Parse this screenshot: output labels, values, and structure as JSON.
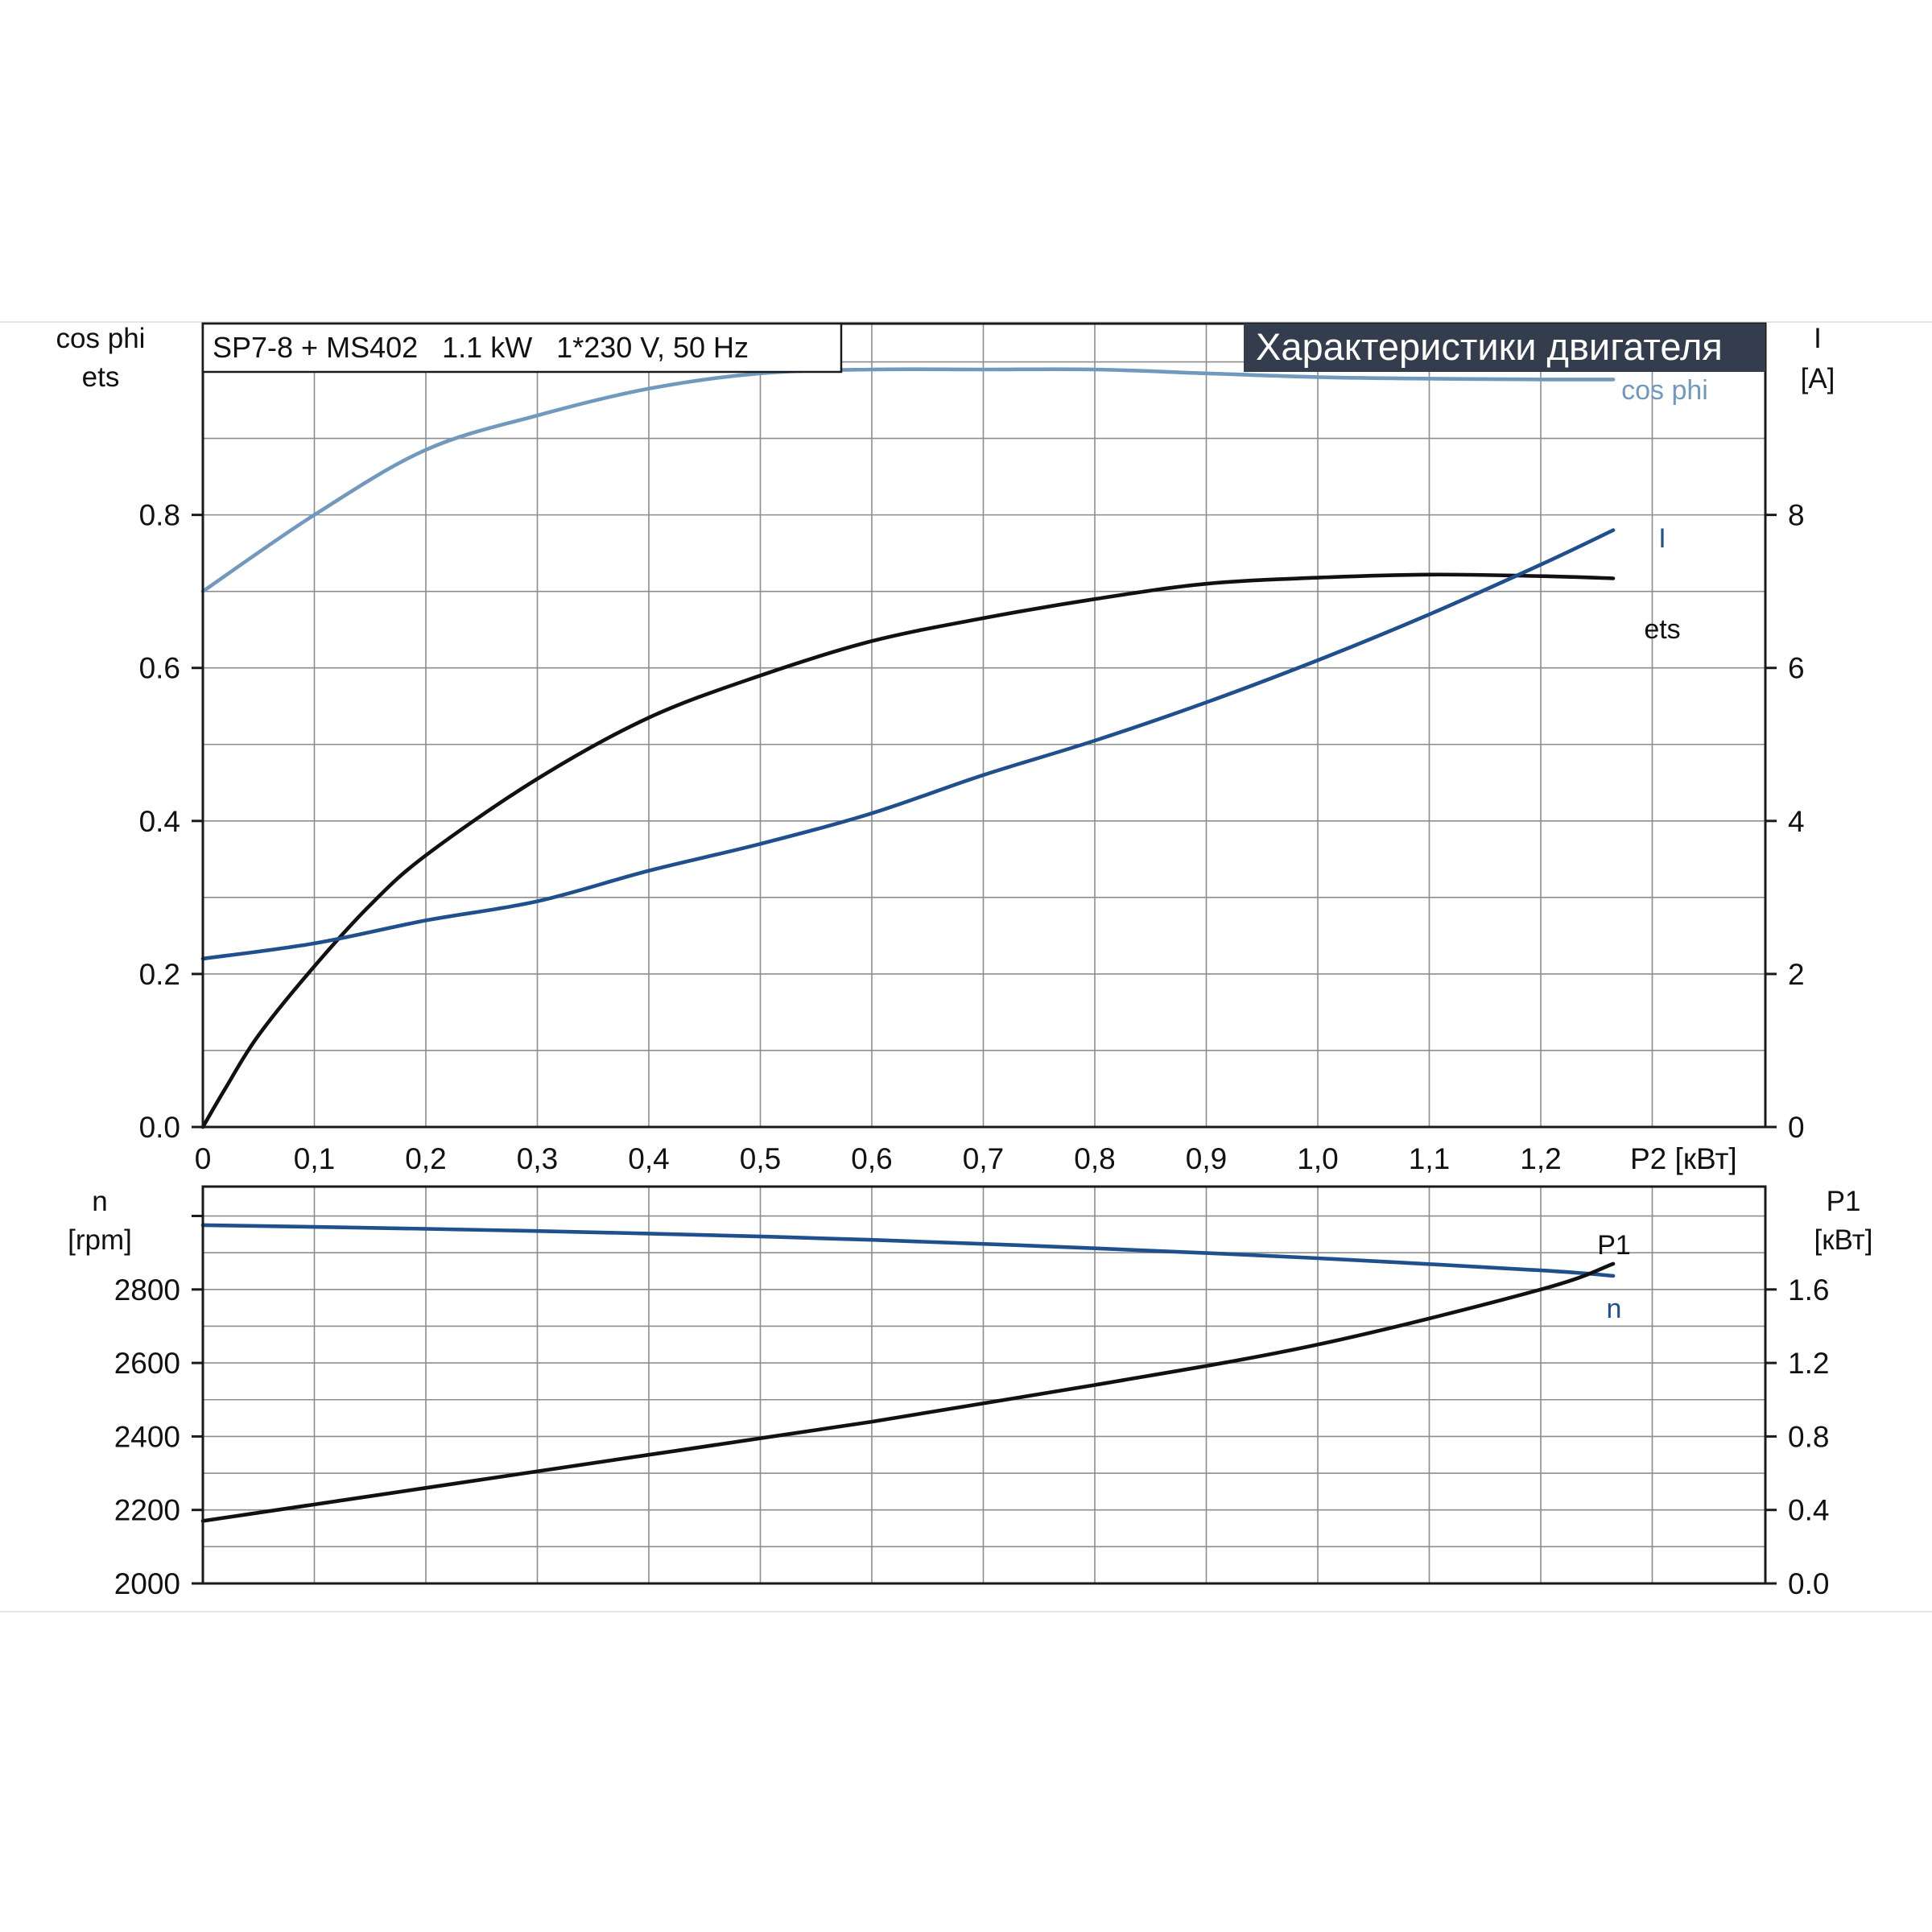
{
  "info_label": "SP7-8 + MS402   1.1 kW   1*230 V, 50 Hz",
  "title": "Характеристики двигателя",
  "colors": {
    "cos_phi": "#7199be",
    "current": "#1f4f8d",
    "ets": "#111111",
    "n": "#1f4f8d",
    "P1": "#111111",
    "title_bg": "#333d4d"
  },
  "chart_data": [
    {
      "type": "line",
      "x_label": "P2 [кВт]",
      "x_ticks": [
        "0",
        "0,1",
        "0,2",
        "0,3",
        "0,4",
        "0,5",
        "0,6",
        "0,7",
        "0,8",
        "0,9",
        "1,0",
        "1,1",
        "1,2"
      ],
      "xlim": [
        0,
        1.4
      ],
      "left_axis_label": [
        "cos phi",
        "ets"
      ],
      "left_ticks": [
        "0.0",
        "0.2",
        "0.4",
        "0.6",
        "0.8"
      ],
      "ylim_left": [
        0,
        1.05
      ],
      "right_axis_label": [
        "I",
        "[A]"
      ],
      "right_ticks": [
        "0",
        "2",
        "4",
        "6",
        "8"
      ],
      "ylim_right": [
        0,
        10.5
      ],
      "grid": true,
      "series": [
        {
          "name": "cos phi",
          "axis": "left",
          "x": [
            0,
            0.1,
            0.2,
            0.3,
            0.4,
            0.5,
            0.6,
            0.7,
            0.8,
            0.9,
            1.0,
            1.1,
            1.2,
            1.265
          ],
          "values": [
            0.7,
            0.8,
            0.885,
            0.93,
            0.965,
            0.985,
            0.99,
            0.99,
            0.99,
            0.985,
            0.98,
            0.978,
            0.977,
            0.977
          ]
        },
        {
          "name": "ets",
          "axis": "left",
          "x": [
            0,
            0.02,
            0.05,
            0.1,
            0.15,
            0.2,
            0.3,
            0.4,
            0.5,
            0.6,
            0.7,
            0.8,
            0.9,
            1.0,
            1.1,
            1.2,
            1.265
          ],
          "values": [
            0,
            0.05,
            0.12,
            0.21,
            0.29,
            0.355,
            0.455,
            0.535,
            0.59,
            0.635,
            0.665,
            0.69,
            0.71,
            0.718,
            0.722,
            0.72,
            0.717
          ]
        },
        {
          "name": "I",
          "axis": "right",
          "x": [
            0,
            0.1,
            0.2,
            0.3,
            0.4,
            0.5,
            0.6,
            0.7,
            0.8,
            0.9,
            1.0,
            1.1,
            1.2,
            1.265
          ],
          "values": [
            2.2,
            2.4,
            2.7,
            2.95,
            3.35,
            3.7,
            4.1,
            4.6,
            5.05,
            5.55,
            6.1,
            6.7,
            7.35,
            7.8
          ]
        }
      ]
    },
    {
      "type": "line",
      "x_ticks": [],
      "xlim": [
        0,
        1.4
      ],
      "left_axis_label": [
        "n",
        "[rpm]"
      ],
      "left_ticks": [
        "2000",
        "2200",
        "2400",
        "2600",
        "2800"
      ],
      "ylim_left": [
        2000,
        3080
      ],
      "right_axis_label": [
        "P1",
        "[кВт]"
      ],
      "right_ticks": [
        "0.0",
        "0.4",
        "0.8",
        "1.2",
        "1.6"
      ],
      "ylim_right": [
        0,
        2.16
      ],
      "grid": true,
      "series": [
        {
          "name": "n",
          "axis": "left",
          "x": [
            0,
            0.2,
            0.4,
            0.6,
            0.8,
            1.0,
            1.2,
            1.265
          ],
          "values": [
            2975,
            2965,
            2952,
            2935,
            2912,
            2885,
            2852,
            2837
          ]
        },
        {
          "name": "P1",
          "axis": "right",
          "x": [
            0,
            0.2,
            0.4,
            0.6,
            0.8,
            1.0,
            1.2,
            1.265
          ],
          "values": [
            0.34,
            0.52,
            0.7,
            0.88,
            1.08,
            1.3,
            1.6,
            1.74
          ]
        }
      ]
    }
  ]
}
